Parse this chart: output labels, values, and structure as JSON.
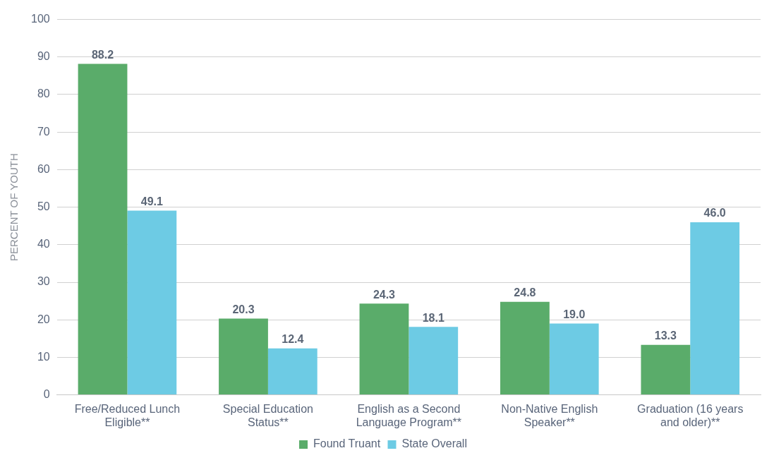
{
  "chart_data": {
    "type": "bar",
    "ylabel": "PERCENT OF YOUTH",
    "categories": [
      "Free/Reduced Lunch Eligible**",
      "Special Education Status**",
      "English as a Second Language Program**",
      "Non-Native English Speaker**",
      "Graduation (16 years and older)**"
    ],
    "series": [
      {
        "name": "Found Truant",
        "color": "#5aac6a",
        "values": [
          88.2,
          20.3,
          24.3,
          24.8,
          13.3
        ],
        "value_labels": [
          "88.2",
          "20.3",
          "24.3",
          "24.8",
          "13.3"
        ]
      },
      {
        "name": "State Overall",
        "color": "#6dcbe4",
        "values": [
          49.1,
          12.4,
          18.1,
          19.0,
          46.0
        ],
        "value_labels": [
          "49.1",
          "12.4",
          "18.1",
          "19.0",
          "46.0"
        ]
      }
    ],
    "ylim": [
      0,
      100
    ],
    "yticks": [
      0,
      10,
      20,
      30,
      40,
      50,
      60,
      70,
      80,
      90,
      100
    ],
    "grid": "y",
    "legend": "bottom"
  }
}
